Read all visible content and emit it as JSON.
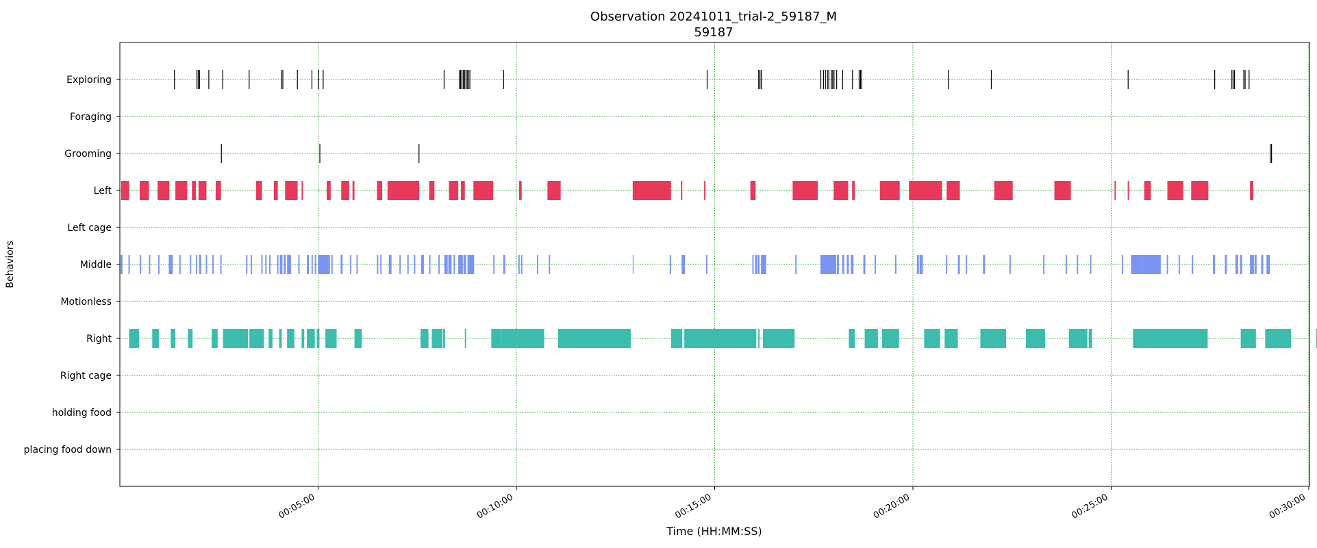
{
  "chart_data": {
    "type": "broken_barh",
    "title": "Observation 20241011_trial-2_59187_M",
    "subtitle": "59187",
    "xlabel": "Time (HH:MM:SS)",
    "ylabel": "Behaviors",
    "x_unit": "seconds",
    "xlim": [
      0,
      1800
    ],
    "x_ticks": [
      {
        "value": 300,
        "label": "00:05:00"
      },
      {
        "value": 600,
        "label": "00:10:00"
      },
      {
        "value": 900,
        "label": "00:15:00"
      },
      {
        "value": 1200,
        "label": "00:20:00"
      },
      {
        "value": 1500,
        "label": "00:25:00"
      },
      {
        "value": 1800,
        "label": "00:30:00"
      }
    ],
    "grid": true,
    "grid_color": "#2ca02c",
    "categories": [
      "Exploring",
      "Foraging",
      "Grooming",
      "Left",
      "Left cage",
      "Middle",
      "Motionless",
      "Right",
      "Right cage",
      "holding food",
      "placing food down"
    ],
    "series": [
      {
        "category": "Exploring",
        "color": "#000000",
        "intervals": [
          [
            82,
            1
          ],
          [
            116,
            1
          ],
          [
            118,
            1
          ],
          [
            120,
            1
          ],
          [
            134,
            1
          ],
          [
            155,
            1
          ],
          [
            195,
            1
          ],
          [
            244,
            1
          ],
          [
            246,
            1
          ],
          [
            268,
            1
          ],
          [
            290,
            1
          ],
          [
            300,
            1
          ],
          [
            307,
            1
          ],
          [
            490,
            1
          ],
          [
            513,
            1
          ],
          [
            515,
            1
          ],
          [
            517,
            1
          ],
          [
            519,
            1
          ],
          [
            521,
            1
          ],
          [
            523,
            1
          ],
          [
            525,
            1
          ],
          [
            527,
            1
          ],
          [
            529,
            1
          ],
          [
            580,
            1
          ],
          [
            888,
            1
          ],
          [
            966,
            1
          ],
          [
            968,
            1
          ],
          [
            970,
            1
          ],
          [
            1060,
            1
          ],
          [
            1064,
            1
          ],
          [
            1067,
            1
          ],
          [
            1070,
            1
          ],
          [
            1072,
            1
          ],
          [
            1076,
            1
          ],
          [
            1078,
            1
          ],
          [
            1080,
            1
          ],
          [
            1084,
            1
          ],
          [
            1093,
            1
          ],
          [
            1108,
            1
          ],
          [
            1118,
            1
          ],
          [
            1120,
            1
          ],
          [
            1122,
            1
          ],
          [
            1253,
            1
          ],
          [
            1318,
            1
          ],
          [
            1525,
            1
          ],
          [
            1656,
            1
          ],
          [
            1682,
            1
          ],
          [
            1684,
            1
          ],
          [
            1686,
            1
          ],
          [
            1700,
            1
          ],
          [
            1702,
            1
          ],
          [
            1708,
            1
          ]
        ]
      },
      {
        "category": "Foraging",
        "color": "#000000",
        "intervals": []
      },
      {
        "category": "Grooming",
        "color": "#000000",
        "intervals": [
          [
            153,
            1
          ],
          [
            302,
            1
          ],
          [
            452,
            1
          ],
          [
            1740,
            1
          ],
          [
            1742,
            1
          ]
        ]
      },
      {
        "category": "Left",
        "color": "#e8395a",
        "intervals": [
          [
            2,
            12
          ],
          [
            30,
            14
          ],
          [
            57,
            18
          ],
          [
            84,
            18
          ],
          [
            109,
            6
          ],
          [
            119,
            12
          ],
          [
            145,
            8
          ],
          [
            206,
            9
          ],
          [
            233,
            6
          ],
          [
            250,
            19
          ],
          [
            275,
            2
          ],
          [
            313,
            6
          ],
          [
            335,
            12
          ],
          [
            352,
            3
          ],
          [
            389,
            8
          ],
          [
            405,
            48
          ],
          [
            468,
            8
          ],
          [
            498,
            14
          ],
          [
            516,
            6
          ],
          [
            535,
            30
          ],
          [
            604,
            4
          ],
          [
            647,
            20
          ],
          [
            776,
            58
          ],
          [
            849,
            2
          ],
          [
            884,
            2
          ],
          [
            954,
            8
          ],
          [
            1018,
            38
          ],
          [
            1080,
            22
          ],
          [
            1108,
            4
          ],
          [
            1150,
            30
          ],
          [
            1194,
            50
          ],
          [
            1251,
            20
          ],
          [
            1323,
            28
          ],
          [
            1414,
            25
          ],
          [
            1505,
            2
          ],
          [
            1525,
            2
          ],
          [
            1550,
            10
          ],
          [
            1585,
            24
          ],
          [
            1621,
            26
          ],
          [
            1710,
            5
          ]
        ]
      },
      {
        "category": "Middle",
        "color": "#7b94f3",
        "intervals": [
          [
            1,
            3
          ],
          [
            13,
            2
          ],
          [
            30,
            2
          ],
          [
            44,
            2
          ],
          [
            58,
            2
          ],
          [
            74,
            6
          ],
          [
            90,
            2
          ],
          [
            106,
            2
          ],
          [
            115,
            2
          ],
          [
            120,
            3
          ],
          [
            130,
            2
          ],
          [
            140,
            2
          ],
          [
            152,
            2
          ],
          [
            191,
            2
          ],
          [
            198,
            2
          ],
          [
            214,
            2
          ],
          [
            220,
            2
          ],
          [
            226,
            2
          ],
          [
            238,
            2
          ],
          [
            242,
            4
          ],
          [
            248,
            3
          ],
          [
            253,
            6
          ],
          [
            270,
            2
          ],
          [
            283,
            3
          ],
          [
            290,
            2
          ],
          [
            295,
            2
          ],
          [
            300,
            16
          ],
          [
            316,
            2
          ],
          [
            320,
            2
          ],
          [
            334,
            3
          ],
          [
            348,
            2
          ],
          [
            358,
            2
          ],
          [
            389,
            2
          ],
          [
            394,
            2
          ],
          [
            407,
            4
          ],
          [
            423,
            2
          ],
          [
            435,
            2
          ],
          [
            445,
            2
          ],
          [
            456,
            4
          ],
          [
            468,
            2
          ],
          [
            482,
            2
          ],
          [
            491,
            5
          ],
          [
            497,
            5
          ],
          [
            505,
            2
          ],
          [
            512,
            7
          ],
          [
            520,
            4
          ],
          [
            526,
            10
          ],
          [
            565,
            2
          ],
          [
            580,
            3
          ],
          [
            603,
            2
          ],
          [
            607,
            2
          ],
          [
            631,
            2
          ],
          [
            649,
            2
          ],
          [
            776,
            1
          ],
          [
            832,
            2
          ],
          [
            850,
            5
          ],
          [
            887,
            2
          ],
          [
            957,
            2
          ],
          [
            961,
            3
          ],
          [
            965,
            3
          ],
          [
            970,
            8
          ],
          [
            1022,
            2
          ],
          [
            1060,
            24
          ],
          [
            1085,
            3
          ],
          [
            1093,
            3
          ],
          [
            1100,
            3
          ],
          [
            1106,
            4
          ],
          [
            1125,
            3
          ],
          [
            1142,
            2
          ],
          [
            1173,
            2
          ],
          [
            1206,
            3
          ],
          [
            1210,
            3
          ],
          [
            1213,
            2
          ],
          [
            1250,
            2
          ],
          [
            1268,
            3
          ],
          [
            1280,
            2
          ],
          [
            1306,
            3
          ],
          [
            1346,
            2
          ],
          [
            1397,
            2
          ],
          [
            1431,
            2
          ],
          [
            1448,
            2
          ],
          [
            1468,
            2
          ],
          [
            1516,
            2
          ],
          [
            1530,
            18
          ],
          [
            1548,
            25
          ],
          [
            1573,
            2
          ],
          [
            1584,
            2
          ],
          [
            1602,
            2
          ],
          [
            1622,
            2
          ],
          [
            1654,
            3
          ],
          [
            1672,
            3
          ],
          [
            1688,
            4
          ],
          [
            1695,
            3
          ],
          [
            1710,
            6
          ],
          [
            1717,
            3
          ],
          [
            1727,
            3
          ],
          [
            1735,
            5
          ]
        ]
      },
      {
        "category": "Motionless",
        "color": "#7b94f3",
        "intervals": []
      },
      {
        "category": "Right",
        "color": "#3bbcad",
        "intervals": [
          [
            14,
            15
          ],
          [
            49,
            10
          ],
          [
            77,
            7
          ],
          [
            103,
            7
          ],
          [
            139,
            9
          ],
          [
            156,
            38
          ],
          [
            196,
            22
          ],
          [
            225,
            6
          ],
          [
            241,
            4
          ],
          [
            253,
            11
          ],
          [
            275,
            4
          ],
          [
            283,
            12
          ],
          [
            298,
            4
          ],
          [
            311,
            17
          ],
          [
            355,
            11
          ],
          [
            455,
            12
          ],
          [
            472,
            16
          ],
          [
            489,
            3
          ],
          [
            522,
            2
          ],
          [
            562,
            16
          ],
          [
            578,
            24
          ],
          [
            602,
            40
          ],
          [
            663,
            110
          ],
          [
            834,
            17
          ],
          [
            854,
            34
          ],
          [
            888,
            75
          ],
          [
            966,
            2
          ],
          [
            973,
            48
          ],
          [
            1103,
            9
          ],
          [
            1127,
            20
          ],
          [
            1153,
            26
          ],
          [
            1217,
            24
          ],
          [
            1248,
            20
          ],
          [
            1302,
            39
          ],
          [
            1373,
            27
          ],
          [
            1371,
            4
          ],
          [
            1436,
            28
          ],
          [
            1466,
            5
          ],
          [
            1533,
            50
          ],
          [
            1579,
            49
          ],
          [
            1574,
            25
          ],
          [
            1585,
            28
          ],
          [
            1614,
            16
          ],
          [
            1625,
            21
          ],
          [
            1696,
            23
          ],
          [
            1733,
            28
          ],
          [
            1752,
            20
          ],
          [
            1810,
            5
          ]
        ]
      },
      {
        "category": "Right cage",
        "color": "#3bbcad",
        "intervals": []
      },
      {
        "category": "holding food",
        "color": "#000000",
        "intervals": []
      },
      {
        "category": "placing food down",
        "color": "#000000",
        "intervals": []
      }
    ]
  }
}
